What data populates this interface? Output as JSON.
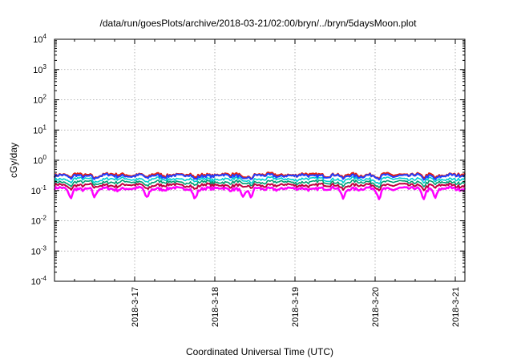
{
  "chart_data": {
    "type": "line",
    "title": "/data/run/goesPlots/archive/2018-03-21/02:00/bryn/../bryn/5daysMoon.plot",
    "xlabel": "Coordinated Universal Time (UTC)",
    "ylabel": "cGy/day",
    "yscale": "log",
    "ylim": [
      0.0001,
      10000
    ],
    "xlim_days": [
      16.0,
      21.12
    ],
    "x_unit": "day of March 2018 (UTC)",
    "yticks": [
      {
        "base": "10",
        "exp": "-4"
      },
      {
        "base": "10",
        "exp": "-3"
      },
      {
        "base": "10",
        "exp": "-2"
      },
      {
        "base": "10",
        "exp": "-1"
      },
      {
        "base": "10",
        "exp": "0"
      },
      {
        "base": "10",
        "exp": "1"
      },
      {
        "base": "10",
        "exp": "2"
      },
      {
        "base": "10",
        "exp": "3"
      },
      {
        "base": "10",
        "exp": "4"
      }
    ],
    "xticks": [
      {
        "label": "2018-3-17",
        "day": 17
      },
      {
        "label": "2018-3-18",
        "day": 18
      },
      {
        "label": "2018-3-19",
        "day": 19
      },
      {
        "label": "2018-3-20",
        "day": 20
      },
      {
        "label": "2018-3-21",
        "day": 21
      }
    ],
    "grid": true,
    "dip_days": [
      16.2,
      16.5,
      17.15,
      17.75,
      18.35,
      18.45,
      19.6,
      20.05,
      20.6,
      20.75
    ],
    "series": [
      {
        "color": "#ff00ff",
        "level": 0.115,
        "width": 2.5
      },
      {
        "color": "#c00040",
        "level": 0.15,
        "width": 2.0
      },
      {
        "color": "#009e73",
        "level": 0.19,
        "width": 1.6
      },
      {
        "color": "#00ced1",
        "level": 0.24,
        "width": 1.6
      },
      {
        "color": "#e51e10",
        "level": 0.33,
        "width": 2.5
      },
      {
        "color": "#2040ff",
        "level": 0.31,
        "width": 2.0
      }
    ]
  }
}
